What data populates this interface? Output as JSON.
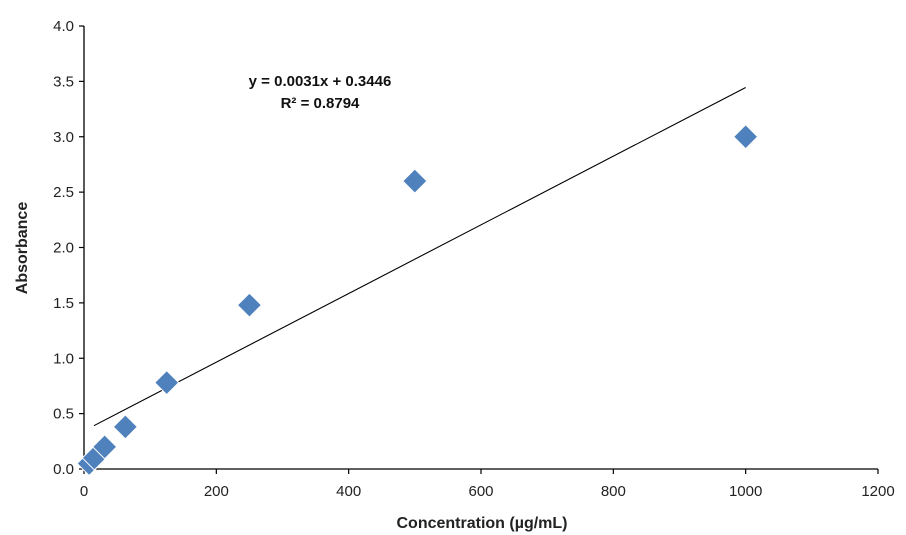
{
  "chart_data": {
    "type": "scatter",
    "title": "",
    "xlabel": "Concentration (µg/mL)",
    "ylabel": "Absorbance",
    "xlim": [
      0,
      1200
    ],
    "ylim": [
      0,
      4.0
    ],
    "x_ticks": [
      0,
      200,
      400,
      600,
      800,
      1000,
      1200
    ],
    "y_ticks": [
      "0.0",
      "0.5",
      "1.0",
      "1.5",
      "2.0",
      "2.5",
      "3.0",
      "3.5",
      "4.0"
    ],
    "grid": false,
    "legend": "none",
    "series": [
      {
        "marker": "diamond",
        "color": "#4F81BD",
        "points": [
          {
            "x": 7.8,
            "y": 0.05
          },
          {
            "x": 15.6,
            "y": 0.1
          },
          {
            "x": 31.25,
            "y": 0.2
          },
          {
            "x": 62.5,
            "y": 0.38
          },
          {
            "x": 125,
            "y": 0.78
          },
          {
            "x": 250,
            "y": 1.48
          },
          {
            "x": 500,
            "y": 2.6
          },
          {
            "x": 1000,
            "y": 3.0
          }
        ]
      }
    ],
    "trendline": {
      "type": "linear",
      "slope": 0.0031,
      "intercept": 0.3446,
      "x_range": [
        15,
        1000
      ],
      "color": "#000000",
      "equation_label": "y = 0.0031x + 0.3446",
      "r2_label": "R² = 0.8794"
    }
  }
}
